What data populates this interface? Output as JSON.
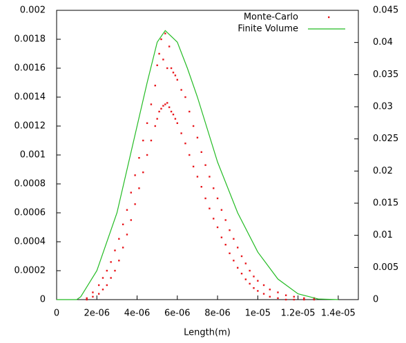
{
  "chart_data": {
    "type": "scatter",
    "x_label": "Length(m)",
    "xlim": [
      0,
      1.5e-05
    ],
    "xticks": [
      0,
      {
        "value": 2e-06,
        "label": "2e-06"
      },
      {
        "value": 4e-06,
        "label": "4e-06"
      },
      {
        "value": 6e-06,
        "label": "6e-06"
      },
      {
        "value": 8e-06,
        "label": "8e-06"
      },
      {
        "value": 1e-05,
        "label": "1e-05"
      },
      {
        "value": 1.2e-05,
        "label": "1.2e-05"
      },
      {
        "value": 1.4e-05,
        "label": "1.4e-05"
      }
    ],
    "ylim": [
      0,
      0.002
    ],
    "yticks": [
      0,
      0.0002,
      0.0004,
      0.0006,
      0.0008,
      0.001,
      0.0012,
      0.0014,
      0.0016,
      0.0018,
      0.002
    ],
    "y2lim": [
      0,
      0.045
    ],
    "y2ticks": [
      0,
      0.005,
      0.01,
      0.015,
      0.02,
      0.025,
      0.03,
      0.035,
      0.04,
      0.045
    ],
    "legend": "top-right",
    "series": [
      {
        "name": "Monte-Carlo",
        "type": "scatter",
        "color": "#e8141a",
        "axis": "y",
        "x": [
          1.5e-06,
          1.8e-06,
          2.1e-06,
          2.3e-06,
          2.5e-06,
          2.7e-06,
          2.9e-06,
          3.1e-06,
          3.3e-06,
          3.5e-06,
          3.7e-06,
          3.9e-06,
          4.1e-06,
          4.3e-06,
          4.5e-06,
          4.7e-06,
          4.9e-06,
          5e-06,
          5.1e-06,
          5.2e-06,
          5.3e-06,
          5.4e-06,
          5.5e-06,
          5.6e-06,
          5.7e-06,
          5.8e-06,
          5.9e-06,
          6e-06,
          6.2e-06,
          6.4e-06,
          6.6e-06,
          6.8e-06,
          7e-06,
          7.2e-06,
          7.4e-06,
          7.6e-06,
          7.8e-06,
          8e-06,
          8.2e-06,
          8.4e-06,
          8.6e-06,
          8.8e-06,
          9e-06,
          9.2e-06,
          9.4e-06,
          9.6e-06,
          9.8e-06,
          1e-05,
          1.03e-05,
          1.06e-05,
          1.1e-05,
          1.14e-05,
          1.18e-05,
          1.23e-05,
          1.28e-05,
          1.5e-06,
          1.8e-06,
          2.1e-06,
          2.3e-06,
          2.5e-06,
          2.7e-06,
          2.9e-06,
          3.1e-06,
          3.3e-06,
          3.5e-06,
          3.7e-06,
          3.9e-06,
          4.1e-06,
          4.3e-06,
          4.5e-06,
          4.7e-06,
          4.9e-06,
          5e-06,
          5.1e-06,
          5.2e-06,
          5.3e-06,
          5.4e-06,
          5.5e-06,
          5.6e-06,
          5.7e-06,
          5.8e-06,
          5.9e-06,
          6e-06,
          6.2e-06,
          6.4e-06,
          6.6e-06,
          6.8e-06,
          7e-06,
          7.2e-06,
          7.4e-06,
          7.6e-06,
          7.8e-06,
          8e-06,
          8.2e-06,
          8.4e-06,
          8.6e-06,
          8.8e-06,
          9e-06,
          9.2e-06,
          9.4e-06,
          9.6e-06,
          9.8e-06,
          1e-05,
          1.03e-05,
          1.06e-05,
          1.1e-05,
          1.14e-05,
          1.18e-05,
          1.23e-05,
          1.28e-05
        ],
        "values": [
          0,
          2e-05,
          4e-05,
          7e-05,
          0.0001,
          0.00015,
          0.0002,
          0.00027,
          0.00036,
          0.00045,
          0.00055,
          0.00066,
          0.00077,
          0.00088,
          0.001,
          0.0011,
          0.0012,
          0.00125,
          0.0013,
          0.00132,
          0.00134,
          0.00135,
          0.00136,
          0.00133,
          0.0013,
          0.00128,
          0.00125,
          0.00122,
          0.00115,
          0.00108,
          0.001,
          0.00092,
          0.00085,
          0.00078,
          0.0007,
          0.00063,
          0.00056,
          0.0005,
          0.00043,
          0.00038,
          0.00032,
          0.00027,
          0.00022,
          0.00018,
          0.00014,
          0.00011,
          8e-05,
          6e-05,
          4e-05,
          2e-05,
          1e-05,
          0,
          0,
          0,
          0,
          1e-05,
          5e-05,
          0.0001,
          0.00015,
          0.0002,
          0.00026,
          0.00034,
          0.00042,
          0.00052,
          0.00062,
          0.00074,
          0.00086,
          0.00098,
          0.0011,
          0.00122,
          0.00135,
          0.00148,
          0.00162,
          0.0017,
          0.0018,
          0.00166,
          0.00184,
          0.0016,
          0.00175,
          0.0016,
          0.00157,
          0.00155,
          0.00152,
          0.00145,
          0.0014,
          0.0013,
          0.0012,
          0.00112,
          0.00102,
          0.00093,
          0.00085,
          0.00077,
          0.0007,
          0.00062,
          0.00055,
          0.00048,
          0.00042,
          0.00036,
          0.0003,
          0.00025,
          0.0002,
          0.00016,
          0.00013,
          0.0001,
          7e-05,
          5e-05,
          3e-05,
          2e-05,
          1e-05,
          1e-05
        ]
      },
      {
        "name": "Finite Volume",
        "type": "line",
        "color": "#22bb22",
        "axis": "y2",
        "x": [
          0,
          1e-06,
          1.2e-06,
          2e-06,
          3e-06,
          4e-06,
          4.5e-06,
          5e-06,
          5.4e-06,
          6e-06,
          6.5e-06,
          7e-06,
          8e-06,
          9e-06,
          1e-05,
          1.1e-05,
          1.2e-05,
          1.3e-05,
          1.4e-05
        ],
        "values": [
          0,
          0,
          0.00045,
          0.0045,
          0.0135,
          0.027,
          0.03375,
          0.04005,
          0.04185,
          0.04005,
          0.036,
          0.0315,
          0.0214,
          0.0135,
          0.0074,
          0.0032,
          0.0009,
          0.0001,
          0
        ]
      }
    ]
  }
}
